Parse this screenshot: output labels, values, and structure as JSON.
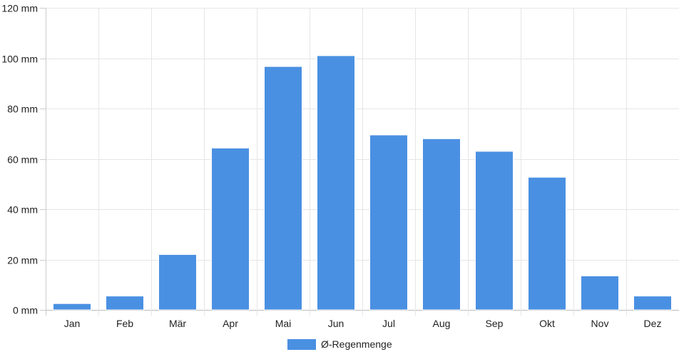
{
  "chart_data": {
    "type": "bar",
    "categories": [
      "Jan",
      "Feb",
      "Mär",
      "Apr",
      "Mai",
      "Jun",
      "Jul",
      "Aug",
      "Sep",
      "Okt",
      "Nov",
      "Dez"
    ],
    "series": [
      {
        "name": "Ø-Regenmenge",
        "color": "#4a90e2",
        "values": [
          2.5,
          5.5,
          22,
          64.3,
          96.7,
          101,
          69.5,
          68,
          63,
          52.7,
          13.5,
          5.5
        ]
      }
    ],
    "ylim": [
      0,
      120
    ],
    "yticks": [
      0,
      20,
      40,
      60,
      80,
      100,
      120
    ],
    "yunit": "mm",
    "ytick_labels": [
      "0 mm",
      "20 mm",
      "40 mm",
      "60 mm",
      "80 mm",
      "100 mm",
      "120 mm"
    ],
    "grid": true,
    "legend_position": "bottom-center",
    "title": "",
    "xlabel": "",
    "ylabel": ""
  }
}
